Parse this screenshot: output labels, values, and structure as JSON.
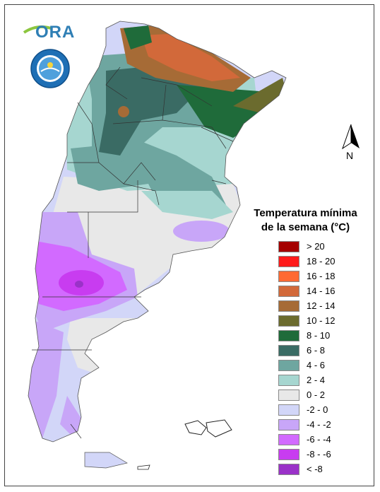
{
  "logos": {
    "ora_text": "ORA",
    "seal_ring_text": "SERVICIO METEOROLÓGICO NACIONAL",
    "seal_bottom_text": "ARGENTINA"
  },
  "north_arrow": {
    "label": "N"
  },
  "legend": {
    "title_line1": "Temperatura mínima",
    "title_line2": "de la semana (°C)",
    "items": [
      {
        "label": "> 20",
        "color": "#a50000"
      },
      {
        "label": "18 - 20",
        "color": "#ff1b1b"
      },
      {
        "label": "16 - 18",
        "color": "#ff6a33"
      },
      {
        "label": "14 - 16",
        "color": "#d2693a"
      },
      {
        "label": "12 - 14",
        "color": "#a66b36"
      },
      {
        "label": "10 - 12",
        "color": "#6b6b2e"
      },
      {
        "label": "8 - 10",
        "color": "#1f6b3a"
      },
      {
        "label": "6 - 8",
        "color": "#3a6b64"
      },
      {
        "label": "4 - 6",
        "color": "#6ea6a0"
      },
      {
        "label": "2 - 4",
        "color": "#a6d6d0"
      },
      {
        "label": "0 - 2",
        "color": "#e8e8e8"
      },
      {
        "label": "-2 - 0",
        "color": "#d2d6f8"
      },
      {
        "label": "-4 - -2",
        "color": "#c8a6f8"
      },
      {
        "label": "-6 - -4",
        "color": "#d26aff"
      },
      {
        "label": "-8 - -6",
        "color": "#c83cf0"
      },
      {
        "label": "< -8",
        "color": "#9a32c8"
      }
    ]
  }
}
